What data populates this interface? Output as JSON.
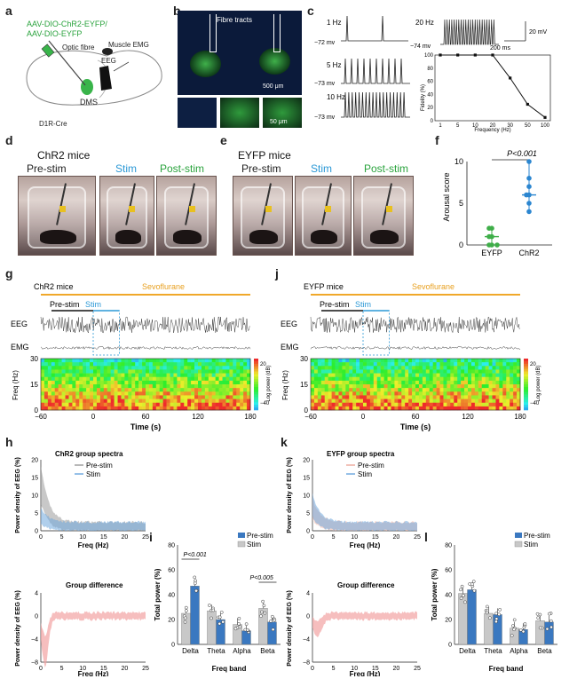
{
  "panel_labels": [
    "a",
    "b",
    "c",
    "d",
    "e",
    "f",
    "g",
    "h",
    "i",
    "j",
    "k",
    "l"
  ],
  "panel_a": {
    "construct_line1": "AAV-DIO-ChR2-EYFP/",
    "construct_line2": "AAV-DIO-EYFP",
    "optic_fibre": "Optic fibre",
    "muscle_emg": "Muscle EMG",
    "eeg": "EEG",
    "dms": "DMS",
    "mouse_line": "D1R-Cre"
  },
  "panel_b": {
    "fibre_tracts": "Fibre tracts",
    "scale1": "500 μm",
    "scale2": "50 μm"
  },
  "panel_c": {
    "freq_labels": [
      "1 Hz",
      "5 Hz",
      "10 Hz",
      "20 Hz"
    ],
    "vm_labels": [
      "−72 mv",
      "−73 mv",
      "−73 mv",
      "−74 mv"
    ],
    "scale_mv": "20 mV",
    "scale_ms": "200 ms",
    "chart_data": {
      "type": "line",
      "xlabel": "Frequency (Hz)",
      "ylabel": "Fidelity (%)",
      "x": [
        1,
        5,
        10,
        20,
        30,
        50,
        100
      ],
      "x_ticks": [
        "1",
        "5",
        "10",
        "20",
        "30",
        "50",
        "100"
      ],
      "y_ticks": [
        "0",
        "20",
        "40",
        "60",
        "80",
        "100"
      ],
      "ylim": [
        0,
        100
      ],
      "values": [
        100,
        100,
        100,
        100,
        65,
        25,
        5
      ]
    }
  },
  "panel_d": {
    "title": "ChR2 mice",
    "conditions": [
      "Pre-stim",
      "Stim",
      "Post-stim"
    ]
  },
  "panel_e": {
    "title": "EYFP mice",
    "conditions": [
      "Pre-stim",
      "Stim",
      "Post-stim"
    ]
  },
  "panel_f": {
    "chart_data": {
      "type": "scatter",
      "categories": [
        "EYFP",
        "ChR2"
      ],
      "ylabel": "Arousal score",
      "y_ticks": [
        "0",
        "5",
        "10"
      ],
      "ylim": [
        0,
        10
      ],
      "series": [
        {
          "values": [
            0,
            0,
            0,
            1,
            1,
            2,
            2
          ],
          "median": 1
        },
        {
          "values": [
            4,
            5,
            6,
            6,
            7,
            8,
            10
          ],
          "median": 6
        }
      ],
      "annotation": "P<0.001"
    }
  },
  "panel_g": {
    "group": "ChR2 mice",
    "drug": "Sevoflurane",
    "pre": "Pre-stim",
    "stim": "Stim",
    "eeg": "EEG",
    "emg": "EMG",
    "ylabel": "Freq (Hz)",
    "y_ticks": [
      "0",
      "15",
      "30"
    ],
    "x_ticks": [
      "−60",
      "0",
      "60",
      "120",
      "180"
    ],
    "xlabel": "Time (s)",
    "cbar_label": "Log power (dB)",
    "cbar_ticks": [
      "20",
      "−40"
    ]
  },
  "panel_j": {
    "group": "EYFP mice",
    "drug": "Sevoflurane",
    "pre": "Pre-stim",
    "stim": "Stim",
    "eeg": "EEG",
    "emg": "EMG",
    "ylabel": "Freq (Hz)",
    "y_ticks": [
      "0",
      "15",
      "30"
    ],
    "x_ticks": [
      "−60",
      "0",
      "60",
      "120",
      "180"
    ],
    "xlabel": "Time (s)",
    "cbar_label": "Log power (dB)",
    "cbar_ticks": [
      "20",
      "−40"
    ]
  },
  "panel_h": {
    "title": "ChR2 group spectra",
    "legend": [
      "Pre-stim",
      "Stim"
    ],
    "ylabel": "Power density of EEG (%)",
    "xlabel": "Freq (Hz)",
    "x_ticks": [
      "0",
      "5",
      "10",
      "15",
      "20",
      "25"
    ],
    "y_ticks": [
      "0",
      "5",
      "10",
      "15",
      "20"
    ],
    "diff_title": "Group difference",
    "diff_y_ticks": [
      "4",
      "0",
      "−4",
      "−8"
    ]
  },
  "panel_k": {
    "title": "EYFP group spectra",
    "legend": [
      "Pre-stim",
      "Stim"
    ],
    "ylabel": "Power density of EEG (%)",
    "xlabel": "Freq (Hz)",
    "x_ticks": [
      "0",
      "5",
      "10",
      "15",
      "20",
      "25"
    ],
    "y_ticks": [
      "0",
      "5",
      "10",
      "15",
      "20"
    ],
    "diff_title": "Group difference",
    "diff_y_ticks": [
      "4",
      "0",
      "−4",
      "−8"
    ]
  },
  "panel_i": {
    "legend": [
      "Pre-stim",
      "Stim"
    ],
    "ylabel": "Total power (%)",
    "xlabel": "Freq band",
    "y_ticks": [
      "0",
      "20",
      "40",
      "60",
      "80"
    ],
    "p1": "P<0.001",
    "p2": "P<0.005",
    "chart_data": {
      "type": "bar",
      "categories": [
        "Delta",
        "Theta",
        "Alpha",
        "Beta"
      ],
      "ylim": [
        0,
        80
      ],
      "series": [
        {
          "name": "Pre-stim",
          "values": [
            47,
            20,
            11,
            18
          ],
          "color": "#3a78c0"
        },
        {
          "name": "Stim",
          "values": [
            25,
            27,
            16,
            29
          ],
          "color": "#c8c8c8"
        }
      ]
    }
  },
  "panel_l": {
    "legend": [
      "Pre-stim",
      "Stim"
    ],
    "ylabel": "Total power (%)",
    "xlabel": "Freq band",
    "y_ticks": [
      "0",
      "20",
      "40",
      "60",
      "80"
    ],
    "chart_data": {
      "type": "bar",
      "categories": [
        "Delta",
        "Theta",
        "Alpha",
        "Beta"
      ],
      "ylim": [
        0,
        80
      ],
      "series": [
        {
          "name": "Pre-stim",
          "values": [
            44,
            24,
            12,
            18
          ],
          "color": "#3a78c0"
        },
        {
          "name": "Stim",
          "values": [
            41,
            25,
            13,
            19
          ],
          "color": "#c8c8c8"
        }
      ]
    }
  }
}
